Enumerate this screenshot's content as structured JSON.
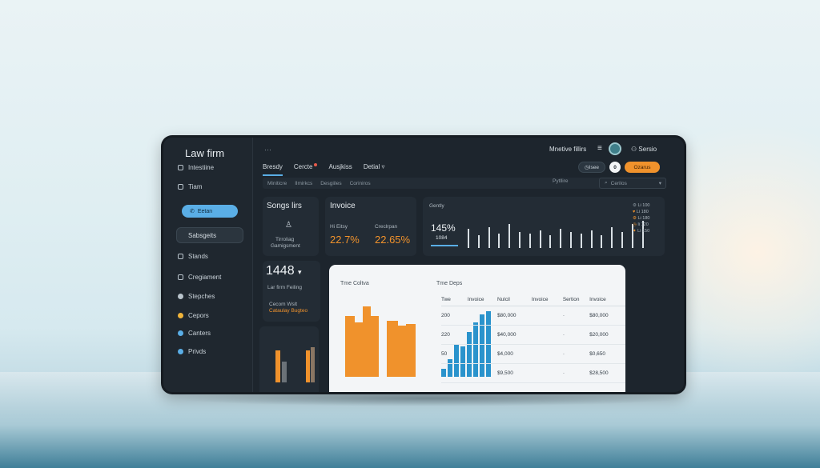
{
  "sidebar": {
    "brand": "Law firm",
    "items": [
      "Intestiine",
      "Tiam",
      "Eetan",
      "Sabsgeits",
      "Stands",
      "Cregiament",
      "Stepches",
      "Cepors",
      "Canters",
      "Privds"
    ]
  },
  "header": {
    "dots": "···",
    "title": "Mnetive fillirs",
    "menu_icon": "hamburger-icon",
    "user": "Sersio",
    "chip_left": "Isee",
    "badge_count": "0",
    "chip_right": "Ozarus"
  },
  "tabs": [
    "Bresdy",
    "Cercte",
    "Ausjkiss",
    "Detial"
  ],
  "subtabs": [
    "Miniticre",
    "Ilmirkcs",
    "Desgiiles",
    "Coriniros"
  ],
  "filter": {
    "label": "Pytllire",
    "select": "Cerilos"
  },
  "cards": {
    "sales": {
      "title": "Songs lirs",
      "line1": "Tirroliag",
      "line2": "Gamigsment"
    },
    "invoice": {
      "title": "Invoice",
      "label1": "Hi Eitsy",
      "value1": "22.7%",
      "label2": "Creclrpan",
      "value2": "22.65%"
    },
    "gently": {
      "title": "Gently",
      "value": "145%",
      "sub": "1084"
    },
    "mini_legend": [
      "Li 100",
      "Li 180",
      "Li 180",
      "Ii 120",
      "Li 150"
    ],
    "metric": {
      "value": "1448",
      "label": "Lar firm Feiling",
      "line1": "Cecom Wslt",
      "line2": "Cataulay Bugteo"
    }
  },
  "white_panel": {
    "left_title": "Tme Coltva",
    "right_title": "Tme Deps",
    "columns": [
      "Twe",
      "Invoice",
      "Nulcil",
      "Invoice",
      "Sertion",
      "Invoice"
    ],
    "rows": [
      [
        "200",
        "",
        "$80,000",
        "",
        "·",
        "$80,000"
      ],
      [
        "220",
        "",
        "$40,000",
        "",
        "·",
        "$20,000"
      ],
      [
        "50",
        "",
        "$4,000",
        "",
        "·",
        "$0,650"
      ],
      [
        "",
        "",
        "$9,500",
        "",
        "·",
        "$28,500"
      ]
    ]
  },
  "colors": {
    "accent_blue": "#5aaee6",
    "accent_orange": "#f0922c",
    "bar_blue": "#2a93cc"
  }
}
